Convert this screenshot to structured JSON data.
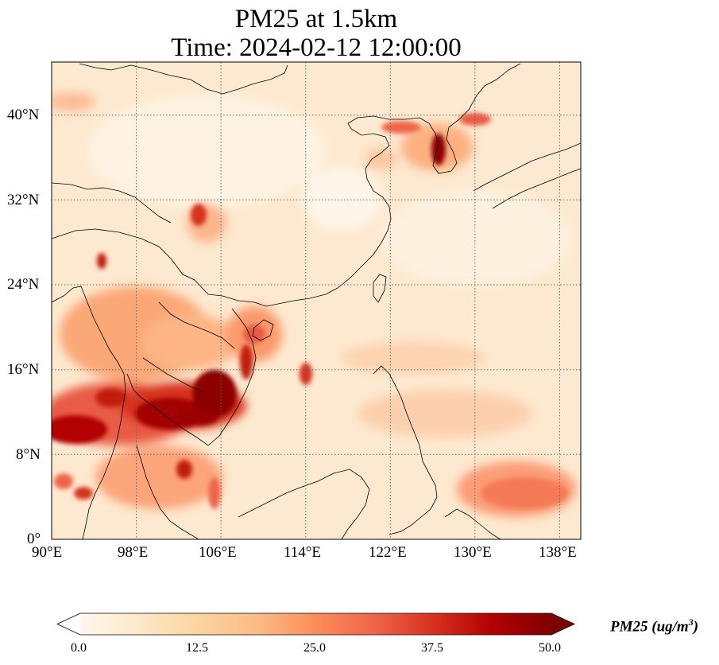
{
  "title": {
    "line1": "PM25 at 1.5km",
    "line2": "Time: 2024-02-12 12:00:00"
  },
  "map": {
    "extent": {
      "lon": [
        90,
        140
      ],
      "lat": [
        0,
        45
      ]
    },
    "lon_ticks": [
      "90°E",
      "98°E",
      "106°E",
      "114°E",
      "122°E",
      "130°E",
      "138°E"
    ],
    "lat_ticks": [
      "0°",
      "8°N",
      "16°N",
      "24°N",
      "32°N",
      "40°N"
    ],
    "gridlines": true
  },
  "colorbar": {
    "label": "PM25 (ug/m",
    "label_sup": "3",
    "label_close": ")",
    "ticks": [
      "0.0",
      "12.5",
      "25.0",
      "37.5",
      "50.0"
    ],
    "range": [
      0,
      50
    ],
    "extend": "both",
    "colormap": "OrRd",
    "colors": [
      "#fff7ec",
      "#fee8c8",
      "#fdd49e",
      "#fdbb84",
      "#fc8d59",
      "#ef6548",
      "#d7301f",
      "#b30000",
      "#7f0000"
    ]
  }
}
